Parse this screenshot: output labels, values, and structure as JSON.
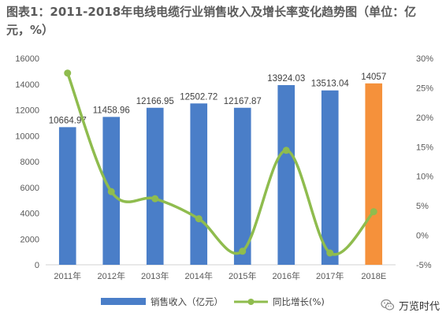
{
  "title": "图表1：2011-2018年电线电缆行业销售收入及增长率变化趋势图（单位：亿元，%）",
  "watermark_text": "万览时代",
  "colors": {
    "bar": "#4a7ec8",
    "bar_forecast": "#f5913b",
    "line": "#8fbc4e"
  },
  "chart_data": {
    "type": "bar",
    "categories": [
      "2011年",
      "2012年",
      "2013年",
      "2014年",
      "2015年",
      "2016年",
      "2017年",
      "2018E"
    ],
    "series": [
      {
        "name": "销售收入（亿元）",
        "type": "bar",
        "axis": "left",
        "values": [
          10664.97,
          11458.96,
          12166.95,
          12502.72,
          12167.87,
          13924.03,
          13513.04,
          14057
        ],
        "labels": [
          "10664.97",
          "11458.96",
          "12166.95",
          "12502.72",
          "12167.87",
          "13924.03",
          "13513.04",
          "14057"
        ]
      },
      {
        "name": "同比增长(%)",
        "type": "line",
        "axis": "right",
        "smooth": true,
        "values": [
          27.5,
          7.4,
          6.2,
          2.8,
          -2.7,
          14.4,
          -3.0,
          4.0
        ]
      }
    ],
    "y_left": {
      "min": 0,
      "max": 16000,
      "step": 2000,
      "ticks": [
        "0",
        "2000",
        "4000",
        "6000",
        "8000",
        "10000",
        "12000",
        "14000",
        "16000"
      ]
    },
    "y_right": {
      "min": -5,
      "max": 30,
      "step": 5,
      "ticks": [
        "-5%",
        "0%",
        "5%",
        "10%",
        "15%",
        "20%",
        "25%",
        "30%"
      ]
    },
    "xlabel": "",
    "ylabel": "",
    "grid": false,
    "legend_position": "bottom"
  }
}
